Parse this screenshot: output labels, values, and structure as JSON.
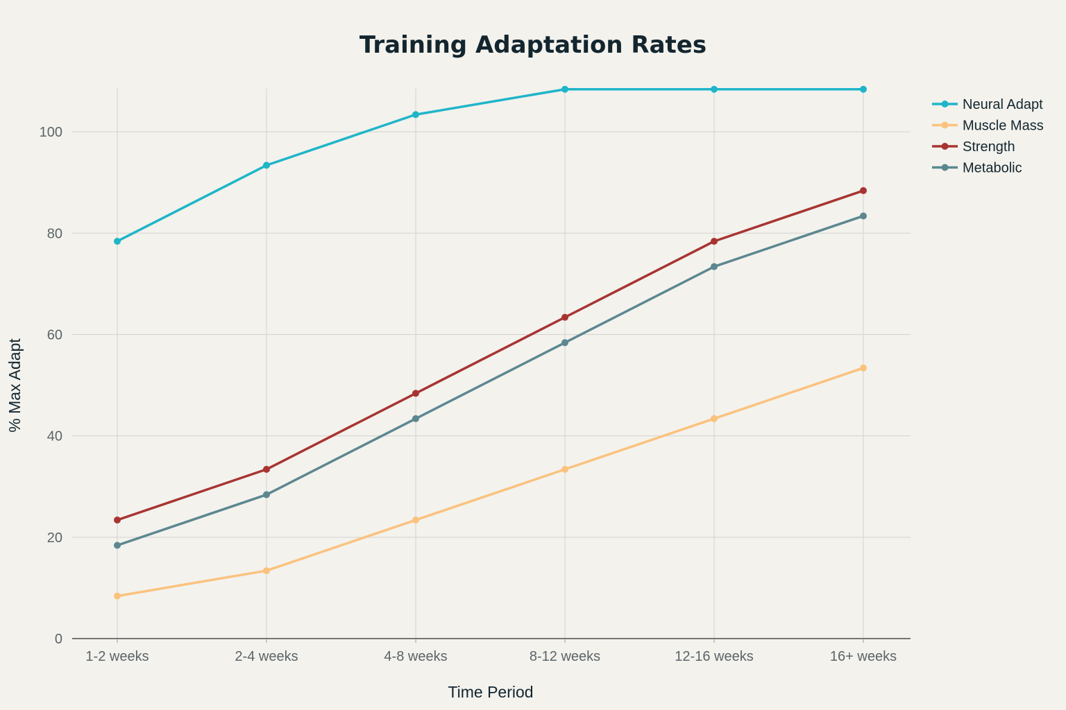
{
  "chart_data": {
    "type": "line",
    "title": "Training Adaptation Rates",
    "xlabel": "Time Period",
    "ylabel": "% Max Adapt",
    "categories": [
      "1-2 weeks",
      "2-4 weeks",
      "4-8 weeks",
      "8-12 weeks",
      "12-16 weeks",
      "16+ weeks"
    ],
    "ylim": [
      0,
      108.5
    ],
    "yticks": [
      0,
      20,
      40,
      60,
      80,
      100
    ],
    "grid": true,
    "legend_position": "top-right",
    "series": [
      {
        "name": "Neural Adapt",
        "color": "#1fb5c8",
        "values": [
          78.4,
          93.4,
          103.4,
          108.4,
          108.4,
          108.4
        ]
      },
      {
        "name": "Muscle Mass",
        "color": "#fbc27e",
        "values": [
          8.4,
          13.4,
          23.4,
          33.4,
          43.4,
          53.4
        ]
      },
      {
        "name": "Strength",
        "color": "#a83432",
        "values": [
          23.4,
          33.4,
          48.4,
          63.4,
          78.4,
          88.4
        ]
      },
      {
        "name": "Metabolic",
        "color": "#5c8790",
        "values": [
          18.4,
          28.4,
          43.4,
          58.4,
          73.4,
          83.4
        ]
      }
    ]
  }
}
